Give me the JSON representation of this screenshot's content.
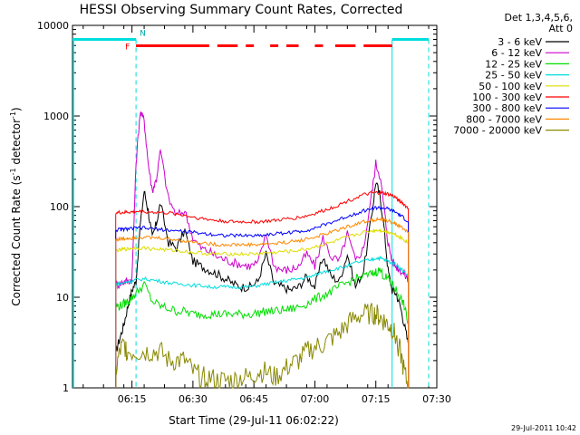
{
  "chart_data": {
    "type": "line",
    "title": "HESSI Observing Summary Count Rates, Corrected",
    "xlabel": "Start Time (29-Jul-11 06:02:22)",
    "ylabel": "Corrected Count Rate (s⁻¹ detector⁻¹)",
    "ylabel_main": "Corrected Count Rate (s",
    "ylabel_sup1": "-1",
    "ylabel_mid": " detector",
    "ylabel_sup2": "-1",
    "ylabel_end": ")",
    "x_unit": "minutes",
    "xlim": [
      2.37,
      92.0
    ],
    "ylim": [
      1,
      10000
    ],
    "yscale": "log",
    "grid": false,
    "x_ticks": [
      {
        "v": 17,
        "label": "06:15"
      },
      {
        "v": 32,
        "label": "06:30"
      },
      {
        "v": 47,
        "label": "06:45"
      },
      {
        "v": 62,
        "label": "07:00"
      },
      {
        "v": 77,
        "label": "07:15"
      },
      {
        "v": 92,
        "label": "07:30"
      }
    ],
    "y_ticks": [
      {
        "v": 1,
        "label": "1"
      },
      {
        "v": 10,
        "label": "10"
      },
      {
        "v": 100,
        "label": "100"
      },
      {
        "v": 1000,
        "label": "1000"
      },
      {
        "v": 10000,
        "label": "10000"
      }
    ],
    "legend": {
      "placement": "right",
      "header1": "Det 1,3,4,5,6,",
      "header2": "Att 0"
    },
    "series": [
      {
        "name": "3 - 6 keV",
        "color": "#000000",
        "x": [
          13,
          14,
          15,
          16,
          17,
          18,
          19,
          20,
          21,
          22,
          23,
          24,
          26,
          28,
          30,
          32,
          34,
          36,
          38,
          40,
          42,
          44,
          46,
          48,
          50,
          52,
          54,
          56,
          58,
          60,
          62,
          64,
          66,
          68,
          70,
          72,
          74,
          76,
          77,
          78,
          79,
          80,
          81,
          82,
          83,
          84,
          85
        ],
        "y": [
          2.5,
          3.5,
          5,
          8,
          12,
          15,
          60,
          150,
          90,
          45,
          65,
          110,
          40,
          35,
          55,
          25,
          22,
          20,
          18,
          16,
          14,
          13,
          13,
          15,
          30,
          14,
          13,
          12,
          13,
          17,
          13,
          28,
          17,
          15,
          30,
          13,
          20,
          80,
          190,
          130,
          60,
          20,
          12,
          11,
          8,
          5,
          3
        ]
      },
      {
        "name": "6 - 12 keV",
        "color": "#cc00cc",
        "x": [
          13,
          14,
          15,
          16,
          17,
          18,
          19,
          20,
          21,
          22,
          23,
          24,
          26,
          28,
          30,
          32,
          34,
          36,
          38,
          40,
          42,
          44,
          46,
          48,
          50,
          52,
          54,
          56,
          58,
          60,
          62,
          64,
          66,
          68,
          70,
          72,
          74,
          76,
          77,
          78,
          79,
          80,
          81,
          82,
          83,
          84,
          85
        ],
        "y": [
          14,
          14,
          15,
          15,
          16,
          300,
          1100,
          900,
          300,
          150,
          200,
          420,
          120,
          80,
          90,
          45,
          35,
          32,
          28,
          26,
          24,
          23,
          22,
          24,
          50,
          22,
          20,
          20,
          22,
          30,
          22,
          45,
          28,
          25,
          50,
          25,
          35,
          140,
          300,
          220,
          100,
          40,
          25,
          22,
          20,
          18,
          16
        ]
      },
      {
        "name": "12 - 25 keV",
        "color": "#00dd00",
        "x": [
          13,
          14,
          15,
          16,
          17,
          18,
          20,
          22,
          24,
          26,
          28,
          30,
          32,
          34,
          36,
          38,
          40,
          42,
          44,
          46,
          48,
          50,
          52,
          54,
          56,
          58,
          60,
          62,
          64,
          66,
          68,
          70,
          72,
          74,
          76,
          77,
          78,
          79,
          80,
          81,
          82,
          83,
          84,
          85
        ],
        "y": [
          8,
          8,
          8.5,
          9,
          10,
          11,
          14,
          9,
          8,
          7.5,
          7,
          7,
          6.5,
          6.5,
          6.5,
          6.5,
          6.5,
          6.5,
          6.5,
          6.5,
          6.7,
          7,
          7,
          7.2,
          7.4,
          7.8,
          8.5,
          9.5,
          10.5,
          11.5,
          13,
          14.5,
          16,
          17,
          18,
          19,
          20,
          17,
          16,
          14,
          12,
          10,
          8,
          5
        ]
      },
      {
        "name": "25 - 50 keV",
        "color": "#00dddd",
        "x": [
          13,
          14,
          15,
          16,
          17,
          18,
          20,
          22,
          24,
          26,
          28,
          30,
          32,
          34,
          36,
          38,
          40,
          42,
          44,
          46,
          48,
          50,
          52,
          54,
          56,
          58,
          60,
          62,
          64,
          66,
          68,
          70,
          72,
          74,
          76,
          77,
          78,
          79,
          80,
          81,
          82,
          83,
          84,
          85
        ],
        "y": [
          14,
          14,
          14.5,
          15,
          15,
          15.5,
          16,
          15.5,
          15,
          14.5,
          14,
          14,
          13.5,
          13.5,
          13,
          13,
          13,
          13,
          13,
          13,
          13.5,
          14,
          14.5,
          15,
          15.5,
          16,
          16.5,
          17.5,
          19,
          20,
          21,
          22,
          24,
          25,
          26,
          27,
          27,
          26,
          25,
          24,
          23,
          21,
          19,
          17
        ]
      },
      {
        "name": "50 - 100 keV",
        "color": "#dddd00",
        "x": [
          13,
          14,
          15,
          16,
          17,
          18,
          20,
          22,
          24,
          26,
          28,
          30,
          32,
          34,
          36,
          38,
          40,
          42,
          44,
          46,
          48,
          50,
          52,
          54,
          56,
          58,
          60,
          62,
          64,
          66,
          68,
          70,
          72,
          74,
          76,
          77,
          78,
          79,
          80,
          81,
          82,
          83,
          84,
          85
        ],
        "y": [
          33,
          33,
          34,
          34,
          35,
          35,
          35,
          34,
          34,
          33,
          33,
          32,
          31,
          31,
          30,
          30,
          30,
          30,
          30,
          30,
          30,
          31,
          31,
          32,
          32,
          33,
          34,
          36,
          38,
          40,
          43,
          46,
          49,
          52,
          54,
          55,
          55,
          54,
          53,
          51,
          49,
          46,
          43,
          40
        ]
      },
      {
        "name": "100 - 300 keV",
        "color": "#ff0000",
        "x": [
          13,
          14,
          15,
          16,
          17,
          18,
          20,
          22,
          24,
          26,
          28,
          30,
          32,
          34,
          36,
          38,
          40,
          42,
          44,
          46,
          48,
          50,
          52,
          54,
          56,
          58,
          60,
          62,
          64,
          66,
          68,
          70,
          72,
          74,
          76,
          77,
          78,
          79,
          80,
          81,
          82,
          83,
          84,
          85
        ],
        "y": [
          85,
          86,
          86,
          87,
          87,
          88,
          88,
          87,
          86,
          85,
          83,
          80,
          77,
          74,
          72,
          70,
          69,
          68,
          68,
          68,
          68,
          69,
          70,
          72,
          74,
          76,
          79,
          84,
          90,
          97,
          105,
          115,
          125,
          135,
          140,
          142,
          142,
          140,
          137,
          132,
          125,
          115,
          105,
          95
        ]
      },
      {
        "name": "300 - 800 keV",
        "color": "#0000ff",
        "x": [
          13,
          14,
          15,
          16,
          17,
          18,
          20,
          22,
          24,
          26,
          28,
          30,
          32,
          34,
          36,
          38,
          40,
          42,
          44,
          46,
          48,
          50,
          52,
          54,
          56,
          58,
          60,
          62,
          64,
          66,
          68,
          70,
          72,
          74,
          76,
          77,
          78,
          79,
          80,
          81,
          82,
          83,
          84,
          85
        ],
        "y": [
          55,
          56,
          56,
          57,
          57,
          58,
          58,
          57,
          56,
          55,
          54,
          53,
          52,
          51,
          50,
          49,
          48,
          48,
          48,
          48,
          48,
          49,
          50,
          51,
          52,
          53,
          55,
          58,
          62,
          67,
          72,
          78,
          84,
          90,
          95,
          97,
          97,
          96,
          94,
          90,
          86,
          80,
          74,
          68
        ]
      },
      {
        "name": "800 - 7000 keV",
        "color": "#ff8800",
        "x": [
          13,
          14,
          15,
          16,
          17,
          18,
          20,
          22,
          24,
          26,
          28,
          30,
          32,
          34,
          36,
          38,
          40,
          42,
          44,
          46,
          48,
          50,
          52,
          54,
          56,
          58,
          60,
          62,
          64,
          66,
          68,
          70,
          72,
          74,
          76,
          77,
          78,
          79,
          80,
          81,
          82,
          83,
          84,
          85
        ],
        "y": [
          43,
          44,
          44,
          45,
          45,
          46,
          46,
          45,
          45,
          44,
          43,
          42,
          41,
          40,
          39,
          38,
          38,
          38,
          38,
          38,
          38,
          39,
          39,
          40,
          41,
          42,
          44,
          46,
          49,
          52,
          56,
          60,
          64,
          68,
          71,
          72,
          72,
          71,
          70,
          67,
          64,
          60,
          56,
          52
        ]
      },
      {
        "name": "7000 - 20000 keV",
        "color": "#888800",
        "x": [
          13,
          14,
          15,
          16,
          18,
          20,
          22,
          24,
          26,
          28,
          30,
          32,
          34,
          36,
          38,
          40,
          42,
          44,
          46,
          48,
          50,
          52,
          54,
          56,
          58,
          60,
          62,
          64,
          66,
          68,
          70,
          72,
          74,
          76,
          77,
          78,
          79,
          80,
          81,
          82,
          83,
          84,
          85
        ],
        "y": [
          1.5,
          2.5,
          3,
          2.5,
          2.5,
          2.5,
          2.5,
          2.5,
          2,
          2,
          2,
          1.5,
          1.3,
          1.3,
          1.2,
          1.2,
          1.2,
          1.3,
          1.3,
          1.5,
          1.5,
          1.3,
          1.5,
          1.8,
          2,
          2.5,
          2.8,
          3,
          3.5,
          4,
          5,
          6,
          6.5,
          6.5,
          6.5,
          6,
          5.5,
          5,
          4.5,
          3.5,
          2.5,
          1.5,
          1
        ]
      }
    ],
    "attenuator_state_lines": [
      {
        "color": "#00dddd",
        "y": 7000,
        "x0": 2.37,
        "x1": 18
      },
      {
        "color": "#00dddd",
        "y": 7000,
        "x0": 81,
        "x1": 90
      }
    ],
    "night_markers": [
      {
        "color": "#00dddd",
        "x": 18,
        "style": "dashed"
      },
      {
        "color": "#00dddd",
        "x": 81,
        "style": "solid"
      },
      {
        "color": "#00dddd",
        "x": 90,
        "style": "dashed"
      }
    ],
    "flare_segments": [
      {
        "x0": 18,
        "x1": 36
      },
      {
        "x0": 38,
        "x1": 43
      },
      {
        "x0": 45,
        "x1": 47
      },
      {
        "x0": 51,
        "x1": 53
      },
      {
        "x0": 55,
        "x1": 58
      },
      {
        "x0": 62,
        "x1": 64
      },
      {
        "x0": 67,
        "x1": 72
      },
      {
        "x0": 74,
        "x1": 81
      }
    ],
    "flare_marker_label": "F",
    "night_marker_label": "N"
  },
  "timestamp": "29-Jul-2011 10:42"
}
